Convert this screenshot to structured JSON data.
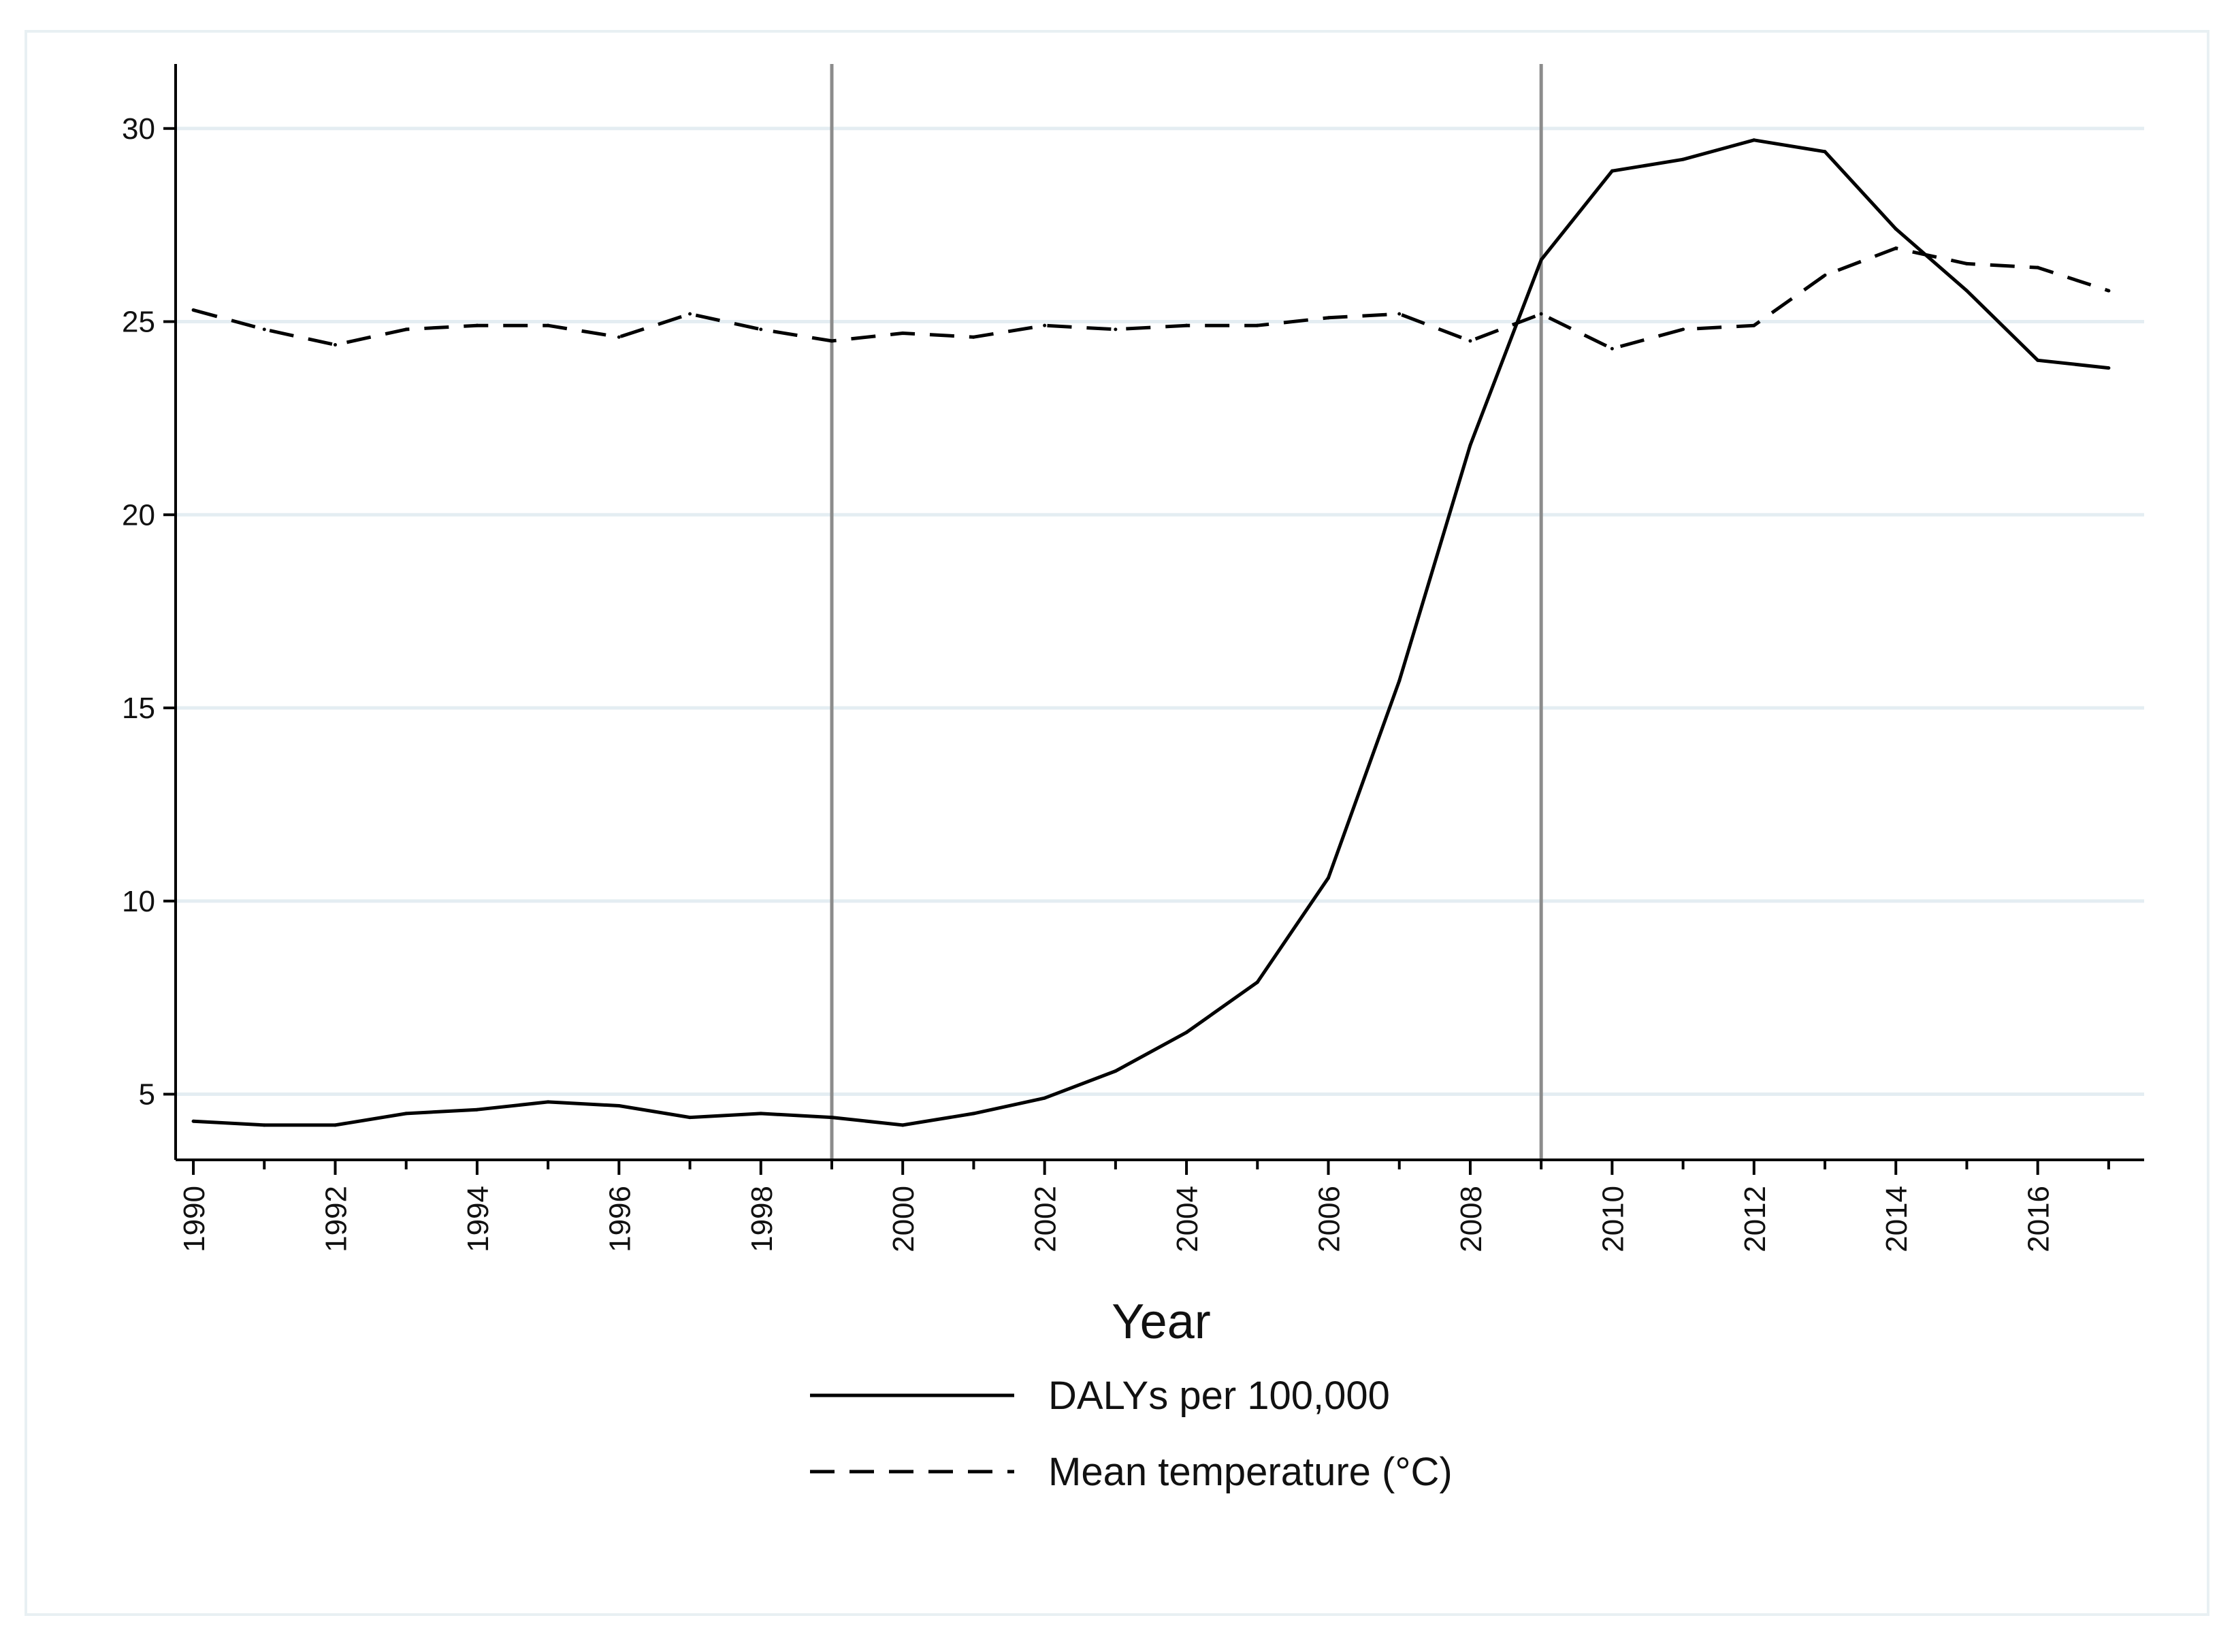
{
  "chart_data": {
    "type": "line",
    "title": "",
    "xlabel": "Year",
    "ylabel": "",
    "xlim": [
      1989.75,
      2017.5
    ],
    "ylim": [
      3.3,
      31
    ],
    "x_ticks": [
      1990,
      1992,
      1994,
      1996,
      1998,
      2000,
      2002,
      2004,
      2006,
      2008,
      2010,
      2012,
      2014,
      2016
    ],
    "y_ticks": [
      5,
      10,
      15,
      20,
      25,
      30
    ],
    "grid": true,
    "legend_position": "bottom",
    "reference_lines_x": [
      1999,
      2009
    ],
    "x": [
      1990,
      1991,
      1992,
      1993,
      1994,
      1995,
      1996,
      1997,
      1998,
      1999,
      2000,
      2001,
      2002,
      2003,
      2004,
      2005,
      2006,
      2007,
      2008,
      2009,
      2010,
      2011,
      2012,
      2013,
      2014,
      2015,
      2016,
      2017
    ],
    "series": [
      {
        "name": "DALYs per 100,000",
        "style": "solid",
        "values": [
          4.3,
          4.2,
          4.2,
          4.5,
          4.6,
          4.8,
          4.7,
          4.4,
          4.5,
          4.4,
          4.2,
          4.5,
          4.9,
          5.6,
          6.6,
          7.9,
          10.6,
          15.7,
          21.8,
          26.6,
          28.9,
          29.2,
          29.7,
          29.4,
          27.4,
          25.8,
          24.0,
          23.8
        ]
      },
      {
        "name": "Mean temperature (°C)",
        "style": "dashed",
        "values": [
          25.3,
          24.8,
          24.4,
          24.8,
          24.9,
          24.9,
          24.6,
          25.2,
          24.8,
          24.5,
          24.7,
          24.6,
          24.9,
          24.8,
          24.9,
          24.9,
          25.1,
          25.2,
          24.5,
          25.2,
          24.3,
          24.8,
          24.9,
          26.2,
          26.9,
          26.5,
          26.4,
          25.8
        ]
      }
    ],
    "colors": {
      "line": "#000000",
      "reference_line": "#8c8c8c",
      "grid": "#e4edf2",
      "axis": "#000000"
    }
  }
}
